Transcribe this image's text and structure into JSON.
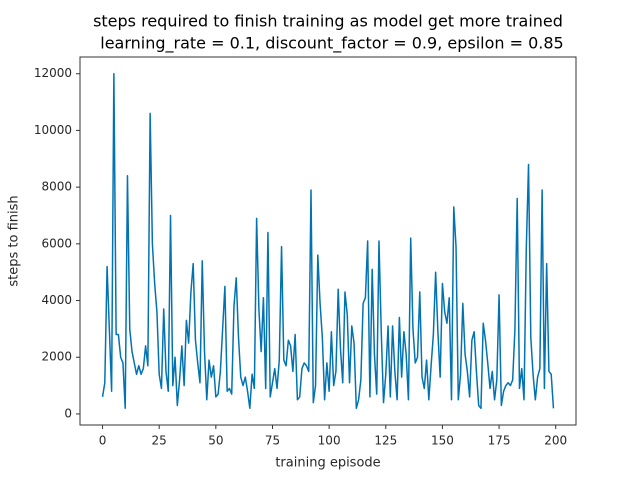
{
  "chart_data": {
    "type": "line",
    "title": "steps required to finish training as model get more trained",
    "subtitle": "learning_rate = 0.1, discount_factor = 0.9, epsilon = 0.85",
    "x_label": "training episode",
    "y_label": "steps to finish",
    "x": [
      0,
      1,
      2,
      3,
      4,
      5,
      6,
      7,
      8,
      9,
      10,
      11,
      12,
      13,
      14,
      15,
      16,
      17,
      18,
      19,
      20,
      21,
      22,
      23,
      24,
      25,
      26,
      27,
      28,
      29,
      30,
      31,
      32,
      33,
      34,
      35,
      36,
      37,
      38,
      39,
      40,
      41,
      42,
      43,
      44,
      45,
      46,
      47,
      48,
      49,
      50,
      51,
      52,
      53,
      54,
      55,
      56,
      57,
      58,
      59,
      60,
      61,
      62,
      63,
      64,
      65,
      66,
      67,
      68,
      69,
      70,
      71,
      72,
      73,
      74,
      75,
      76,
      77,
      78,
      79,
      80,
      81,
      82,
      83,
      84,
      85,
      86,
      87,
      88,
      89,
      90,
      91,
      92,
      93,
      94,
      95,
      96,
      97,
      98,
      99,
      100,
      101,
      102,
      103,
      104,
      105,
      106,
      107,
      108,
      109,
      110,
      111,
      112,
      113,
      114,
      115,
      116,
      117,
      118,
      119,
      120,
      121,
      122,
      123,
      124,
      125,
      126,
      127,
      128,
      129,
      130,
      131,
      132,
      133,
      134,
      135,
      136,
      137,
      138,
      139,
      140,
      141,
      142,
      143,
      144,
      145,
      146,
      147,
      148,
      149,
      150,
      151,
      152,
      153,
      154,
      155,
      156,
      157,
      158,
      159,
      160,
      161,
      162,
      163,
      164,
      165,
      166,
      167,
      168,
      169,
      170,
      171,
      172,
      173,
      174,
      175,
      176,
      177,
      178,
      179,
      180,
      181,
      182,
      183,
      184,
      185,
      186,
      187,
      188,
      189,
      190,
      191,
      192,
      193,
      194,
      195,
      196,
      197,
      198,
      199
    ],
    "series": [
      {
        "color": "#0173b2",
        "values": [
          600,
          1100,
          5200,
          3000,
          800,
          12000,
          2800,
          2800,
          2000,
          1800,
          200,
          8400,
          3000,
          2200,
          1800,
          1400,
          1700,
          1400,
          1600,
          2400,
          1700,
          10600,
          6000,
          4600,
          3600,
          1400,
          900,
          3700,
          1500,
          800,
          7000,
          1000,
          2000,
          300,
          1200,
          2400,
          1000,
          3300,
          2500,
          4300,
          5300,
          2600,
          1800,
          1100,
          5400,
          2200,
          500,
          1900,
          1300,
          1700,
          600,
          700,
          1500,
          3000,
          4500,
          800,
          900,
          700,
          3800,
          4800,
          2700,
          1300,
          1000,
          1300,
          800,
          200,
          1400,
          900,
          6900,
          3700,
          2200,
          4100,
          900,
          6400,
          600,
          1100,
          1600,
          900,
          1900,
          5900,
          1900,
          1700,
          2600,
          2400,
          1500,
          2800,
          500,
          600,
          1600,
          1800,
          1700,
          1500,
          7900,
          400,
          1000,
          5600,
          3900,
          2700,
          500,
          1800,
          800,
          2900,
          1000,
          1500,
          4400,
          2300,
          1100,
          4300,
          3500,
          1100,
          3100,
          2500,
          200,
          500,
          1200,
          3900,
          4100,
          6100,
          600,
          5100,
          2100,
          700,
          6100,
          2900,
          400,
          1400,
          3100,
          600,
          3100,
          1500,
          500,
          3400,
          1300,
          2900,
          2100,
          500,
          6200,
          3000,
          1800,
          2000,
          4300,
          1300,
          900,
          1900,
          500,
          1700,
          2800,
          5000,
          2900,
          1300,
          4600,
          3600,
          3200,
          4100,
          500,
          7300,
          5900,
          500,
          1400,
          3900,
          2100,
          1500,
          600,
          2600,
          2900,
          1500,
          300,
          200,
          3200,
          2600,
          1800,
          900,
          1500,
          500,
          1200,
          4200,
          300,
          800,
          1000,
          1100,
          1000,
          1200,
          3000,
          7600,
          900,
          1600,
          500,
          5800,
          8800,
          2700,
          1400,
          500,
          1300,
          1600,
          7900,
          900,
          5300,
          1500,
          1400,
          200
        ]
      }
    ],
    "xlim": [
      -9.95,
      208.95
    ],
    "xticks": [
      0,
      25,
      50,
      75,
      100,
      125,
      150,
      175,
      200
    ],
    "ylim": [
      -390,
      12590
    ],
    "yticks": [
      0,
      2000,
      4000,
      6000,
      8000,
      10000,
      12000
    ]
  }
}
